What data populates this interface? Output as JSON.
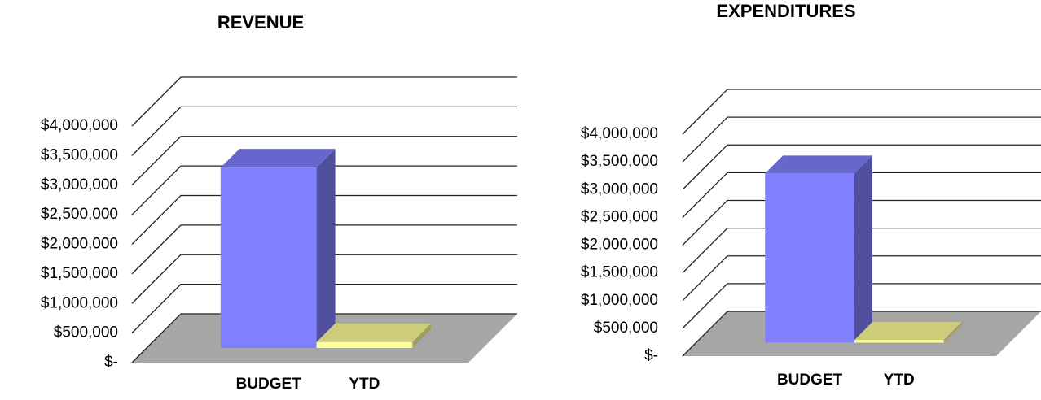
{
  "chart_data": [
    {
      "type": "bar3d",
      "title": "REVENUE",
      "categories": [
        "BUDGET",
        "YTD"
      ],
      "values": [
        3050000,
        100000
      ],
      "colors": [
        "#8080ff",
        "#ffff99"
      ],
      "ylim": [
        0,
        4000000
      ],
      "yticks": [
        {
          "value": 0,
          "label": "$-"
        },
        {
          "value": 500000,
          "label": "$500,000"
        },
        {
          "value": 1000000,
          "label": "$1,000,000"
        },
        {
          "value": 1500000,
          "label": "$1,500,000"
        },
        {
          "value": 2000000,
          "label": "$2,000,000"
        },
        {
          "value": 2500000,
          "label": "$2,500,000"
        },
        {
          "value": 3000000,
          "label": "$3,000,000"
        },
        {
          "value": 3500000,
          "label": "$3,500,000"
        },
        {
          "value": 4000000,
          "label": "$4,000,000"
        }
      ],
      "grid": true
    },
    {
      "type": "bar3d",
      "title": "EXPENDITURES",
      "categories": [
        "BUDGET",
        "YTD"
      ],
      "values": [
        3050000,
        50000
      ],
      "colors": [
        "#8080ff",
        "#ffff99"
      ],
      "ylim": [
        0,
        4000000
      ],
      "yticks": [
        {
          "value": 0,
          "label": "$-"
        },
        {
          "value": 500000,
          "label": "$500,000"
        },
        {
          "value": 1000000,
          "label": "$1,000,000"
        },
        {
          "value": 1500000,
          "label": "$1,500,000"
        },
        {
          "value": 2000000,
          "label": "$2,000,000"
        },
        {
          "value": 2500000,
          "label": "$2,500,000"
        },
        {
          "value": 3000000,
          "label": "$3,000,000"
        },
        {
          "value": 3500000,
          "label": "$3,500,000"
        },
        {
          "value": 4000000,
          "label": "$4,000,000"
        }
      ],
      "grid": true
    }
  ]
}
